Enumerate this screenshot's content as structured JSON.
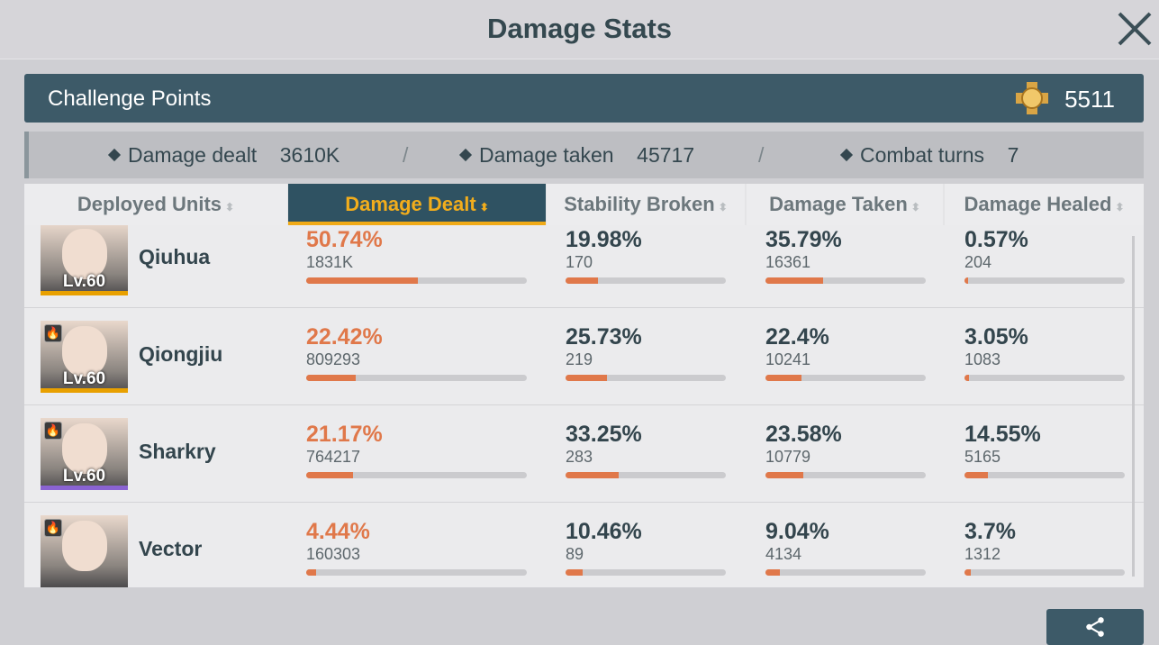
{
  "header": {
    "title": "Damage Stats"
  },
  "challenge": {
    "label": "Challenge Points",
    "value": "5511",
    "icon": "medal-icon"
  },
  "summary": [
    {
      "label": "Damage dealt",
      "value": "3610K"
    },
    {
      "label": "Damage taken",
      "value": "45717"
    },
    {
      "label": "Combat turns",
      "value": "7"
    }
  ],
  "separator": "/",
  "columns": [
    "Deployed Units",
    "Damage Dealt",
    "Stability Broken",
    "Damage Taken",
    "Damage Healed"
  ],
  "active_column": "Damage Dealt",
  "colors": {
    "accent": "#f0aa17",
    "bar": "#e0784a",
    "panel": "#3d5a68"
  },
  "units": [
    {
      "name": "Qiuhua",
      "level": "Lv.60",
      "rarity": "#e8a000",
      "element": false,
      "dealt": {
        "pct": "50.74%",
        "value": "1831K",
        "fill": 50.74
      },
      "stability": {
        "pct": "19.98%",
        "value": "170",
        "fill": 19.98
      },
      "taken": {
        "pct": "35.79%",
        "value": "16361",
        "fill": 35.79
      },
      "healed": {
        "pct": "0.57%",
        "value": "204",
        "fill": 0.57
      }
    },
    {
      "name": "Qiongjiu",
      "level": "Lv.60",
      "rarity": "#e8a000",
      "element": true,
      "dealt": {
        "pct": "22.42%",
        "value": "809293",
        "fill": 22.42
      },
      "stability": {
        "pct": "25.73%",
        "value": "219",
        "fill": 25.73
      },
      "taken": {
        "pct": "22.4%",
        "value": "10241",
        "fill": 22.4
      },
      "healed": {
        "pct": "3.05%",
        "value": "1083",
        "fill": 3.05
      }
    },
    {
      "name": "Sharkry",
      "level": "Lv.60",
      "rarity": "#8a63d2",
      "element": true,
      "dealt": {
        "pct": "21.17%",
        "value": "764217",
        "fill": 21.17
      },
      "stability": {
        "pct": "33.25%",
        "value": "283",
        "fill": 33.25
      },
      "taken": {
        "pct": "23.58%",
        "value": "10779",
        "fill": 23.58
      },
      "healed": {
        "pct": "14.55%",
        "value": "5165",
        "fill": 14.55
      }
    },
    {
      "name": "Vector",
      "level": "",
      "rarity": "",
      "element": true,
      "dealt": {
        "pct": "4.44%",
        "value": "160303",
        "fill": 4.44
      },
      "stability": {
        "pct": "10.46%",
        "value": "89",
        "fill": 10.46
      },
      "taken": {
        "pct": "9.04%",
        "value": "4134",
        "fill": 9.04
      },
      "healed": {
        "pct": "3.7%",
        "value": "1312",
        "fill": 3.7
      }
    }
  ]
}
